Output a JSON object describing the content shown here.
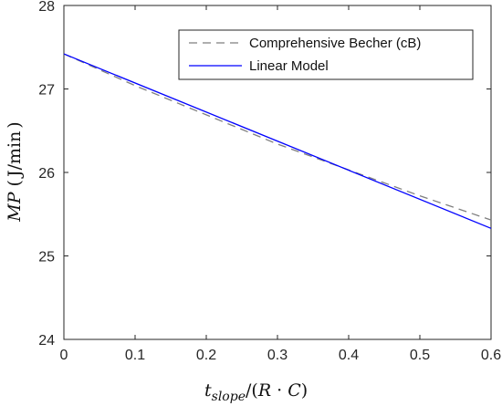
{
  "chart_data": {
    "type": "line",
    "xlabel": "t_slope/(R · C)",
    "ylabel": "MP ( J/min )",
    "xlim": [
      0,
      0.6
    ],
    "ylim": [
      24,
      28
    ],
    "x_ticks": [
      "0",
      "0.1",
      "0.2",
      "0.3",
      "0.4",
      "0.5",
      "0.6"
    ],
    "y_ticks": [
      "24",
      "25",
      "26",
      "27",
      "28"
    ],
    "grid": false,
    "legend_position": "top-right",
    "series": [
      {
        "name": "Comprehensive Becher (cB)",
        "style": "dashed",
        "color": "#7f7f7f",
        "x": [
          0,
          0.1,
          0.2,
          0.3,
          0.4,
          0.5,
          0.6
        ],
        "y": [
          27.42,
          27.04,
          26.69,
          26.34,
          26.03,
          25.72,
          25.43
        ]
      },
      {
        "name": "Linear Model",
        "style": "solid",
        "color": "#0000ff",
        "x": [
          0,
          0.6
        ],
        "y": [
          27.42,
          25.33
        ]
      }
    ]
  }
}
